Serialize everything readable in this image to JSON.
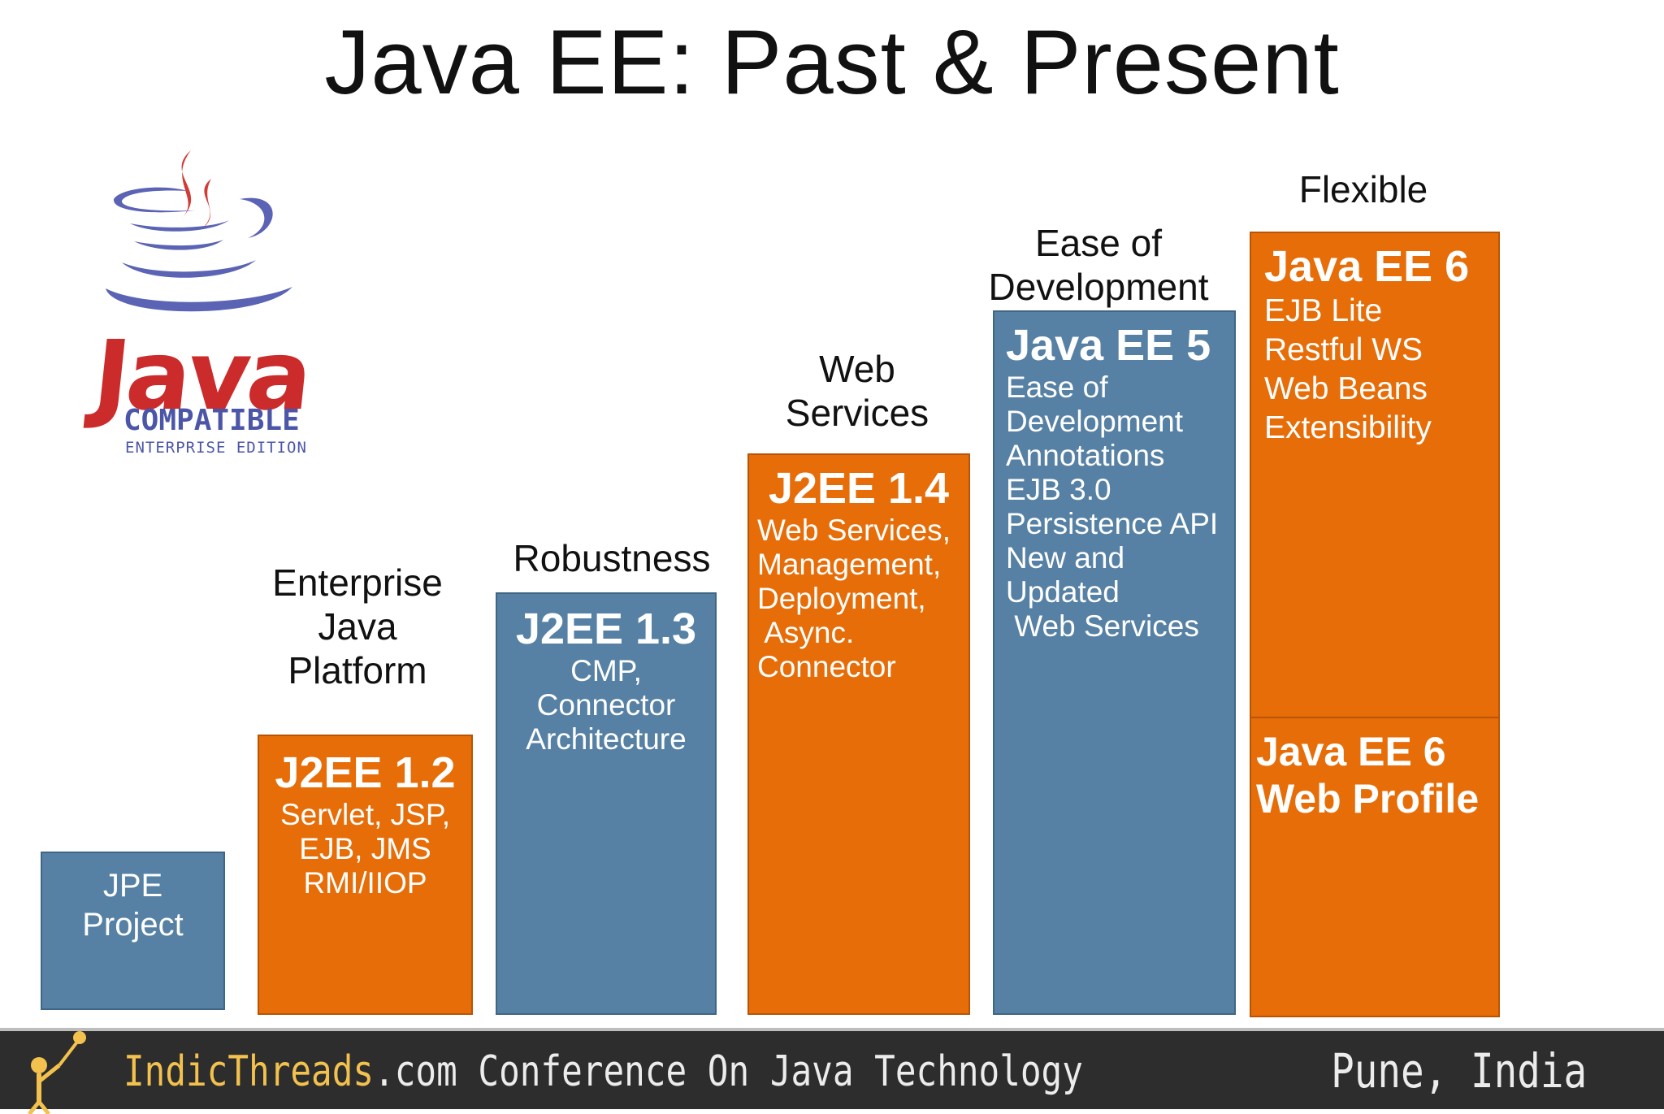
{
  "title": "Java EE: Past & Present",
  "logo": {
    "word": "Java",
    "compatible": "COMPATIBLE",
    "edition": "ENTERPRISE EDITION"
  },
  "stages": [
    {
      "label": "",
      "color": "#5681a4",
      "box_title": "",
      "lines": [
        "JPE",
        "Project"
      ]
    },
    {
      "label": "Enterprise\nJava\nPlatform",
      "color": "#e66d08",
      "box_title": "J2EE 1.2",
      "lines": [
        "Servlet, JSP,",
        "EJB, JMS",
        "RMI/IIOP"
      ]
    },
    {
      "label": "Robustness",
      "color": "#5681a4",
      "box_title": "J2EE 1.3",
      "lines": [
        "CMP,",
        "Connector",
        "Architecture"
      ]
    },
    {
      "label": "Web\nServices",
      "color": "#e66d08",
      "box_title": "J2EE 1.4",
      "lines": [
        "Web Services,",
        "Management,",
        "Deployment,",
        " Async.",
        "Connector"
      ]
    },
    {
      "label": "Ease of\nDevelopment",
      "color": "#5681a4",
      "box_title": "Java EE 5",
      "lines": [
        "Ease of",
        "Development",
        "Annotations",
        "EJB 3.0",
        "Persistence API",
        "New and",
        "Updated",
        " Web Services"
      ]
    },
    {
      "label": "Flexible",
      "color": "#e66d08",
      "box_title": "Java EE 6",
      "lines": [
        "EJB Lite",
        "Restful WS",
        "Web Beans",
        "Extensibility"
      ],
      "sub_title_1": "Java EE 6",
      "sub_title_2": "Web Profile"
    }
  ],
  "footer": {
    "brand_highlight": "IndicThreads",
    "brand_rest": ".com Conference On Java Technology",
    "location": "Pune, India"
  }
}
